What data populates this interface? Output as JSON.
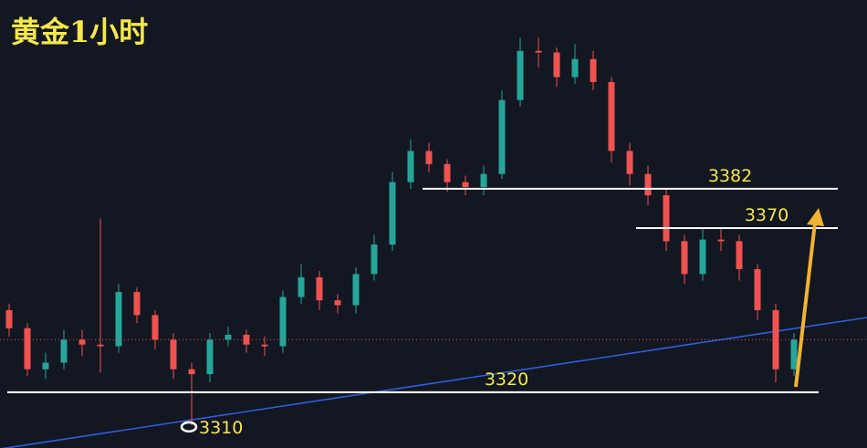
{
  "chart_data": {
    "type": "candlestick",
    "title": "黄金1小时",
    "ylim": [
      3303,
      3439.5
    ],
    "up_color": "#26a69a",
    "down_color": "#ef5350",
    "candles": [
      [
        3345,
        3347,
        3337,
        3339.5
      ],
      [
        3339.5,
        3341,
        3325,
        3327
      ],
      [
        3327,
        3332,
        3324,
        3329
      ],
      [
        3329,
        3339,
        3327,
        3336
      ],
      [
        3336,
        3339,
        3331,
        3334.5
      ],
      [
        3334.5,
        3373,
        3326,
        3334
      ],
      [
        3334,
        3353,
        3332,
        3350.5
      ],
      [
        3350.5,
        3352,
        3341,
        3343.5
      ],
      [
        3343.5,
        3345,
        3333,
        3336
      ],
      [
        3336,
        3338,
        3324,
        3327
      ],
      [
        3327,
        3329,
        3310,
        3325.5
      ],
      [
        3325.5,
        3338,
        3323,
        3336
      ],
      [
        3336,
        3340,
        3334,
        3337.5
      ],
      [
        3337.5,
        3339,
        3332,
        3334.5
      ],
      [
        3334.5,
        3337,
        3331,
        3334
      ],
      [
        3334,
        3351,
        3332,
        3349
      ],
      [
        3349,
        3359,
        3347,
        3355
      ],
      [
        3355,
        3357,
        3345,
        3348
      ],
      [
        3348,
        3350,
        3344,
        3346.5
      ],
      [
        3346.5,
        3358,
        3344,
        3356
      ],
      [
        3356,
        3368,
        3354,
        3365
      ],
      [
        3365,
        3387,
        3363,
        3384
      ],
      [
        3384,
        3397,
        3382,
        3393.5
      ],
      [
        3393.5,
        3396,
        3387,
        3389.5
      ],
      [
        3389.5,
        3391,
        3381,
        3384
      ],
      [
        3384,
        3386,
        3380,
        3382.5
      ],
      [
        3382.5,
        3389,
        3380,
        3386.5
      ],
      [
        3386.5,
        3412,
        3385,
        3409
      ],
      [
        3409,
        3428,
        3407,
        3424
      ],
      [
        3424,
        3428,
        3419,
        3423.5
      ],
      [
        3423.5,
        3425,
        3413,
        3416
      ],
      [
        3416,
        3426,
        3414,
        3421.5
      ],
      [
        3421.5,
        3424,
        3412,
        3414.5
      ],
      [
        3414.5,
        3416,
        3390,
        3393.5
      ],
      [
        3393.5,
        3396,
        3383,
        3386.5
      ],
      [
        3386.5,
        3389,
        3377,
        3380
      ],
      [
        3380,
        3382,
        3363,
        3366
      ],
      [
        3366,
        3368,
        3353,
        3356
      ],
      [
        3356,
        3370,
        3354,
        3366.5
      ],
      [
        3366.5,
        3370,
        3363,
        3366
      ],
      [
        3366,
        3368,
        3354,
        3357.5
      ],
      [
        3357.5,
        3359,
        3342,
        3345
      ],
      [
        3345,
        3347,
        3323,
        3327
      ],
      [
        3327,
        3338,
        3325,
        3336
      ]
    ],
    "levels": [
      3382,
      3370,
      3320
    ],
    "low_marker": 3310
  }
}
